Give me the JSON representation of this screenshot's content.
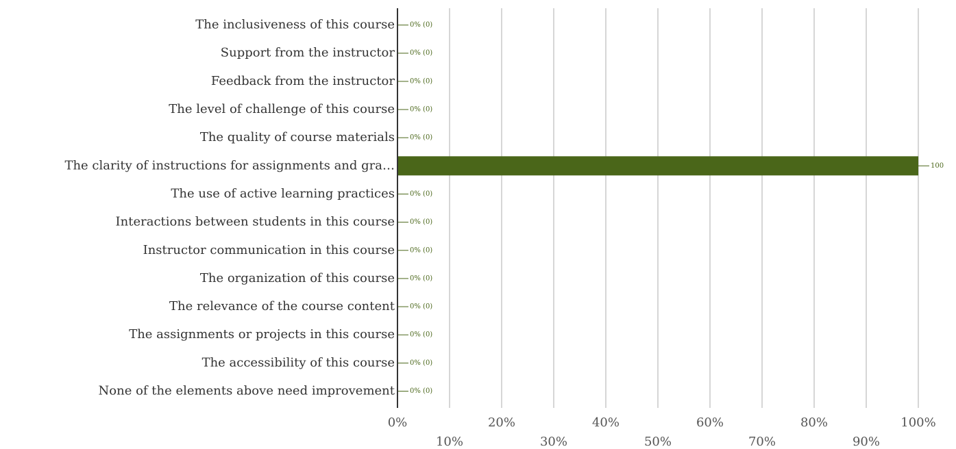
{
  "chart_data": {
    "type": "bar",
    "orientation": "horizontal",
    "categories": [
      "The inclusiveness of this course",
      "Support from the instructor",
      "Feedback from the instructor",
      "The level of challenge of this course",
      "The quality of course materials",
      "The clarity of instructions for assignments and gra…",
      "The use of active learning practices",
      "Interactions between students in this course",
      "Instructor communication in this course",
      "The organization of this course",
      "The relevance of the course content",
      "The assignments or projects in this course",
      "The accessibility of this course",
      "None of the elements above need improvement"
    ],
    "values": [
      0,
      0,
      0,
      0,
      0,
      100,
      0,
      0,
      0,
      0,
      0,
      0,
      0,
      0
    ],
    "value_labels": [
      "0% (0)",
      "0% (0)",
      "0% (0)",
      "0% (0)",
      "0% (0)",
      "100",
      "0% (0)",
      "0% (0)",
      "0% (0)",
      "0% (0)",
      "0% (0)",
      "0% (0)",
      "0% (0)",
      "0% (0)"
    ],
    "color": "#4a6619",
    "xlim": [
      0,
      100
    ],
    "xticks": [
      {
        "value": 0,
        "label": "0%"
      },
      {
        "value": 10,
        "label": "10%"
      },
      {
        "value": 20,
        "label": "20%"
      },
      {
        "value": 30,
        "label": "30%"
      },
      {
        "value": 40,
        "label": "40%"
      },
      {
        "value": 50,
        "label": "50%"
      },
      {
        "value": 60,
        "label": "60%"
      },
      {
        "value": 70,
        "label": "70%"
      },
      {
        "value": 80,
        "label": "80%"
      },
      {
        "value": 90,
        "label": "90%"
      },
      {
        "value": 100,
        "label": "100%"
      }
    ],
    "grid": true
  }
}
